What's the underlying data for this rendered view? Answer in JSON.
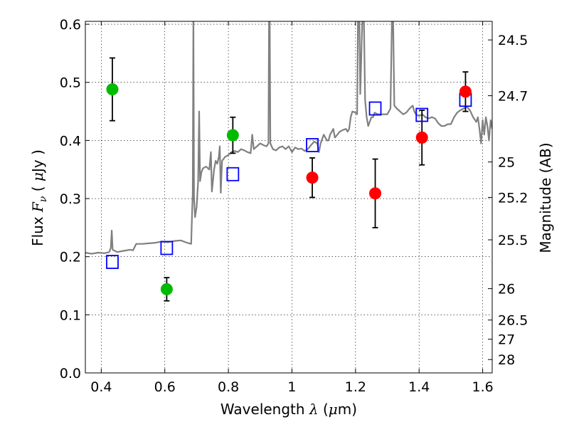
{
  "chart_data": {
    "type": "scatter",
    "xlabel": {
      "prefix": "Wavelength  ",
      "symbol": "λ",
      "suffix": " (",
      "unit_mu": "μ",
      "unit_tail": "m)"
    },
    "ylabel": {
      "prefix": "Flux  ",
      "symbol": "F",
      "sub": "ν",
      "mid": "  ( ",
      "unit_mu": "μ",
      "unit_tail": "Jy )"
    },
    "y2label": "Magnitude (AB)",
    "xlim": [
      0.35,
      1.63
    ],
    "ylim": [
      0.0,
      0.605
    ],
    "grid": true,
    "x_ticks": [
      0.4,
      0.6,
      0.8,
      1.0,
      1.2,
      1.4,
      1.6
    ],
    "x_tick_labels": [
      "0.4",
      "0.6",
      "0.8",
      "1",
      "1.2",
      "1.4",
      "1.6"
    ],
    "y_ticks": [
      0.0,
      0.1,
      0.2,
      0.3,
      0.4,
      0.5,
      0.6
    ],
    "y_tick_labels": [
      "0.0",
      "0.1",
      "0.2",
      "0.3",
      "0.4",
      "0.5",
      "0.6"
    ],
    "mag_ticks": [
      {
        "label": "24.5",
        "flux": 0.573
      },
      {
        "label": "24.7",
        "flux": 0.477
      },
      {
        "label": "25",
        "flux": 0.363
      },
      {
        "label": "25.2",
        "flux": 0.302
      },
      {
        "label": "25.5",
        "flux": 0.229
      },
      {
        "label": "26",
        "flux": 0.145
      },
      {
        "label": "26.5",
        "flux": 0.091
      },
      {
        "label": "27",
        "flux": 0.058
      },
      {
        "label": "28",
        "flux": 0.023
      }
    ],
    "series": [
      {
        "kind": "points_with_errors",
        "color": "#00bb00",
        "points": [
          {
            "x": 0.435,
            "y": 0.488,
            "err": 0.054
          },
          {
            "x": 0.606,
            "y": 0.144,
            "err": 0.02
          },
          {
            "x": 0.814,
            "y": 0.409,
            "err": 0.031
          }
        ]
      },
      {
        "kind": "points_with_errors",
        "color": "#ff0000",
        "points": [
          {
            "x": 1.064,
            "y": 0.336,
            "err": 0.034
          },
          {
            "x": 1.262,
            "y": 0.309,
            "err": 0.059
          },
          {
            "x": 1.409,
            "y": 0.405,
            "err": 0.047
          },
          {
            "x": 1.546,
            "y": 0.484,
            "err": 0.034
          }
        ]
      },
      {
        "kind": "open_squares",
        "color": "#0000ff",
        "points": [
          {
            "x": 0.435,
            "y": 0.191
          },
          {
            "x": 0.606,
            "y": 0.215
          },
          {
            "x": 0.814,
            "y": 0.342
          },
          {
            "x": 1.064,
            "y": 0.392
          },
          {
            "x": 1.262,
            "y": 0.455
          },
          {
            "x": 1.409,
            "y": 0.444
          },
          {
            "x": 1.546,
            "y": 0.47
          }
        ]
      },
      {
        "kind": "spectrum",
        "color": "#808080",
        "points": [
          [
            0.35,
            0.207
          ],
          [
            0.37,
            0.205
          ],
          [
            0.39,
            0.207
          ],
          [
            0.41,
            0.206
          ],
          [
            0.425,
            0.208
          ],
          [
            0.43,
            0.215
          ],
          [
            0.433,
            0.245
          ],
          [
            0.436,
            0.212
          ],
          [
            0.45,
            0.208
          ],
          [
            0.47,
            0.21
          ],
          [
            0.49,
            0.212
          ],
          [
            0.5,
            0.211
          ],
          [
            0.51,
            0.222
          ],
          [
            0.53,
            0.222
          ],
          [
            0.55,
            0.223
          ],
          [
            0.57,
            0.224
          ],
          [
            0.59,
            0.226
          ],
          [
            0.61,
            0.225
          ],
          [
            0.63,
            0.227
          ],
          [
            0.65,
            0.228
          ],
          [
            0.67,
            0.224
          ],
          [
            0.683,
            0.222
          ],
          [
            0.686,
            0.28
          ],
          [
            0.688,
            0.31
          ],
          [
            0.69,
            0.62
          ],
          [
            0.692,
            0.3
          ],
          [
            0.695,
            0.268
          ],
          [
            0.7,
            0.285
          ],
          [
            0.705,
            0.33
          ],
          [
            0.708,
            0.45
          ],
          [
            0.711,
            0.33
          ],
          [
            0.715,
            0.345
          ],
          [
            0.72,
            0.352
          ],
          [
            0.73,
            0.355
          ],
          [
            0.74,
            0.35
          ],
          [
            0.745,
            0.38
          ],
          [
            0.748,
            0.312
          ],
          [
            0.755,
            0.35
          ],
          [
            0.76,
            0.365
          ],
          [
            0.765,
            0.36
          ],
          [
            0.77,
            0.372
          ],
          [
            0.773,
            0.39
          ],
          [
            0.776,
            0.31
          ],
          [
            0.78,
            0.365
          ],
          [
            0.79,
            0.372
          ],
          [
            0.8,
            0.375
          ],
          [
            0.81,
            0.38
          ],
          [
            0.82,
            0.382
          ],
          [
            0.83,
            0.38
          ],
          [
            0.84,
            0.385
          ],
          [
            0.85,
            0.383
          ],
          [
            0.86,
            0.38
          ],
          [
            0.87,
            0.378
          ],
          [
            0.875,
            0.41
          ],
          [
            0.88,
            0.385
          ],
          [
            0.89,
            0.39
          ],
          [
            0.9,
            0.395
          ],
          [
            0.91,
            0.392
          ],
          [
            0.92,
            0.39
          ],
          [
            0.926,
            0.395
          ],
          [
            0.928,
            0.62
          ],
          [
            0.93,
            0.62
          ],
          [
            0.932,
            0.395
          ],
          [
            0.94,
            0.385
          ],
          [
            0.95,
            0.383
          ],
          [
            0.96,
            0.388
          ],
          [
            0.97,
            0.39
          ],
          [
            0.98,
            0.385
          ],
          [
            0.99,
            0.39
          ],
          [
            1.0,
            0.38
          ],
          [
            1.01,
            0.388
          ],
          [
            1.02,
            0.385
          ],
          [
            1.03,
            0.386
          ],
          [
            1.04,
            0.382
          ],
          [
            1.05,
            0.385
          ],
          [
            1.06,
            0.392
          ],
          [
            1.07,
            0.398
          ],
          [
            1.08,
            0.395
          ],
          [
            1.085,
            0.38
          ],
          [
            1.09,
            0.395
          ],
          [
            1.1,
            0.41
          ],
          [
            1.11,
            0.4
          ],
          [
            1.115,
            0.4
          ],
          [
            1.12,
            0.41
          ],
          [
            1.13,
            0.42
          ],
          [
            1.135,
            0.405
          ],
          [
            1.14,
            0.408
          ],
          [
            1.15,
            0.415
          ],
          [
            1.16,
            0.418
          ],
          [
            1.17,
            0.42
          ],
          [
            1.175,
            0.415
          ],
          [
            1.18,
            0.42
          ],
          [
            1.185,
            0.44
          ],
          [
            1.19,
            0.45
          ],
          [
            1.2,
            0.448
          ],
          [
            1.205,
            0.445
          ],
          [
            1.208,
            0.62
          ],
          [
            1.212,
            0.62
          ],
          [
            1.215,
            0.48
          ],
          [
            1.222,
            0.62
          ],
          [
            1.226,
            0.62
          ],
          [
            1.23,
            0.47
          ],
          [
            1.235,
            0.44
          ],
          [
            1.24,
            0.425
          ],
          [
            1.25,
            0.44
          ],
          [
            1.255,
            0.44
          ],
          [
            1.26,
            0.448
          ],
          [
            1.27,
            0.445
          ],
          [
            1.28,
            0.445
          ],
          [
            1.29,
            0.445
          ],
          [
            1.3,
            0.445
          ],
          [
            1.305,
            0.45
          ],
          [
            1.31,
            0.455
          ],
          [
            1.315,
            0.62
          ],
          [
            1.318,
            0.62
          ],
          [
            1.322,
            0.46
          ],
          [
            1.33,
            0.455
          ],
          [
            1.34,
            0.45
          ],
          [
            1.35,
            0.445
          ],
          [
            1.36,
            0.448
          ],
          [
            1.37,
            0.455
          ],
          [
            1.38,
            0.46
          ],
          [
            1.385,
            0.45
          ],
          [
            1.39,
            0.445
          ],
          [
            1.4,
            0.442
          ],
          [
            1.41,
            0.445
          ],
          [
            1.42,
            0.44
          ],
          [
            1.43,
            0.438
          ],
          [
            1.44,
            0.44
          ],
          [
            1.45,
            0.438
          ],
          [
            1.46,
            0.43
          ],
          [
            1.47,
            0.425
          ],
          [
            1.48,
            0.425
          ],
          [
            1.49,
            0.428
          ],
          [
            1.5,
            0.428
          ],
          [
            1.51,
            0.44
          ],
          [
            1.52,
            0.448
          ],
          [
            1.53,
            0.452
          ],
          [
            1.54,
            0.455
          ],
          [
            1.55,
            0.458
          ],
          [
            1.56,
            0.452
          ],
          [
            1.57,
            0.44
          ],
          [
            1.58,
            0.432
          ],
          [
            1.585,
            0.44
          ],
          [
            1.59,
            0.42
          ],
          [
            1.595,
            0.395
          ],
          [
            1.6,
            0.435
          ],
          [
            1.605,
            0.41
          ],
          [
            1.61,
            0.44
          ],
          [
            1.615,
            0.425
          ],
          [
            1.62,
            0.4
          ],
          [
            1.625,
            0.435
          ],
          [
            1.63,
            0.42
          ]
        ]
      }
    ]
  }
}
